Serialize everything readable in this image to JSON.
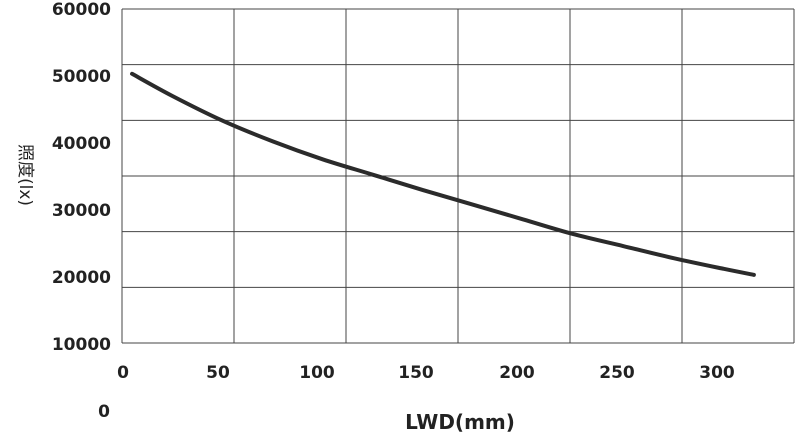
{
  "chart_data": {
    "type": "line",
    "title": "",
    "xlabel": "LWD(mm)",
    "ylabel": "照度(lx)",
    "xlim": [
      0,
      335
    ],
    "ylim": [
      10000,
      60000
    ],
    "x_ticks": [
      "0",
      "50",
      "100",
      "150",
      "200",
      "250",
      "300"
    ],
    "y_ticks": [
      "10000",
      "20000",
      "30000",
      "40000",
      "50000",
      "60000"
    ],
    "extra_label": "0",
    "grid": true,
    "series": [
      {
        "x": [
          5,
          25,
          50,
          75,
          100,
          125,
          150,
          175,
          200,
          225,
          250,
          275,
          300,
          315
        ],
        "values": [
          50300,
          47000,
          43300,
          40200,
          37500,
          35200,
          32900,
          30700,
          28500,
          26300,
          24500,
          22700,
          21100,
          20200
        ],
        "color": "#2b2b2b"
      }
    ]
  }
}
